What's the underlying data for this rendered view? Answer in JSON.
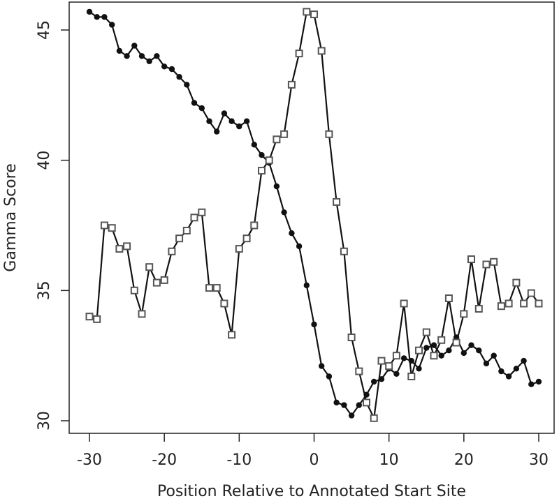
{
  "chart_data": {
    "type": "line",
    "title": "",
    "xlabel": "Position Relative to Annotated Start Site",
    "ylabel": "Gamma Score",
    "xlim": [
      -30,
      30
    ],
    "ylim": [
      30,
      45.5
    ],
    "x_ticks": [
      -30,
      -20,
      -10,
      0,
      10,
      20,
      30
    ],
    "x_tick_labels": [
      "-30",
      "-20",
      "-10",
      "0",
      "10",
      "20",
      "30"
    ],
    "y_ticks": [
      30,
      35,
      40,
      45
    ],
    "y_tick_labels": [
      "30",
      "35",
      "40",
      "45"
    ],
    "grid": false,
    "legend": "none",
    "x": [
      -30,
      -29,
      -28,
      -27,
      -26,
      -25,
      -24,
      -23,
      -22,
      -21,
      -20,
      -19,
      -18,
      -17,
      -16,
      -15,
      -14,
      -13,
      -12,
      -11,
      -10,
      -9,
      -8,
      -7,
      -6,
      -5,
      -4,
      -3,
      -2,
      -1,
      0,
      1,
      2,
      3,
      4,
      5,
      6,
      7,
      8,
      9,
      10,
      11,
      12,
      13,
      14,
      15,
      16,
      17,
      18,
      19,
      20,
      21,
      22,
      23,
      24,
      25,
      26,
      27,
      28,
      29,
      30
    ],
    "series": [
      {
        "marker": "filled-circle",
        "color": "#111111",
        "values": [
          45.7,
          45.5,
          45.5,
          45.2,
          44.2,
          44.0,
          44.4,
          44.0,
          43.8,
          44.0,
          43.6,
          43.5,
          43.2,
          42.9,
          42.2,
          42.0,
          41.5,
          41.1,
          41.8,
          41.5,
          41.3,
          41.5,
          40.6,
          40.2,
          39.9,
          39.0,
          38.0,
          37.2,
          36.7,
          35.2,
          33.7,
          32.1,
          31.7,
          30.7,
          30.6,
          30.2,
          30.6,
          31.0,
          31.5,
          31.6,
          32.0,
          31.8,
          32.4,
          32.3,
          32.0,
          32.8,
          32.9,
          32.5,
          32.7,
          33.2,
          32.6,
          32.9,
          32.7,
          32.2,
          32.5,
          31.9,
          31.7,
          32.0,
          32.3,
          31.4,
          31.5
        ]
      },
      {
        "marker": "open-square",
        "color": "#555555",
        "values": [
          34.0,
          33.9,
          37.5,
          37.4,
          36.6,
          36.7,
          35.0,
          34.1,
          35.9,
          35.3,
          35.4,
          36.5,
          37.0,
          37.3,
          37.8,
          38.0,
          35.1,
          35.1,
          34.5,
          33.3,
          36.6,
          37.0,
          37.5,
          39.6,
          40.0,
          40.8,
          41.0,
          42.9,
          44.1,
          45.7,
          45.6,
          44.2,
          41.0,
          38.4,
          36.5,
          33.2,
          31.9,
          30.7,
          30.1,
          32.3,
          32.1,
          32.5,
          34.5,
          31.7,
          32.7,
          33.4,
          32.5,
          33.1,
          34.7,
          33.0,
          34.1,
          36.2,
          34.3,
          36.0,
          36.1,
          34.4,
          34.5,
          35.3,
          34.5,
          34.9,
          34.5
        ]
      }
    ]
  }
}
